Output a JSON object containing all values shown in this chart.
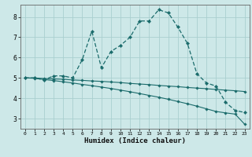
{
  "xlabel": "Humidex (Indice chaleur)",
  "background_color": "#cde8e8",
  "grid_color": "#aacfcf",
  "line_color": "#1a6b6b",
  "xlim": [
    -0.5,
    23.5
  ],
  "ylim": [
    2.5,
    8.6
  ],
  "xticks": [
    0,
    1,
    2,
    3,
    4,
    5,
    6,
    7,
    8,
    9,
    10,
    11,
    12,
    13,
    14,
    15,
    16,
    17,
    18,
    19,
    20,
    21,
    22,
    23
  ],
  "yticks": [
    3,
    4,
    5,
    6,
    7,
    8
  ],
  "series1_x": [
    0,
    1,
    2,
    3,
    4,
    5,
    6,
    7,
    8,
    9,
    10,
    11,
    12,
    13,
    14,
    15,
    16,
    17,
    18,
    19,
    20,
    21,
    22,
    23
  ],
  "series1_y": [
    5.0,
    5.0,
    4.9,
    5.1,
    5.1,
    5.0,
    5.9,
    7.3,
    5.5,
    6.3,
    6.6,
    7.0,
    7.8,
    7.8,
    8.35,
    8.2,
    7.5,
    6.7,
    5.2,
    4.75,
    4.6,
    3.8,
    3.4,
    3.3
  ],
  "series2_x": [
    0,
    1,
    2,
    3,
    4,
    5,
    6,
    7,
    8,
    9,
    10,
    11,
    12,
    13,
    14,
    15,
    16,
    17,
    18,
    19,
    20,
    21,
    22,
    23
  ],
  "series2_y": [
    5.0,
    5.0,
    4.97,
    4.95,
    4.93,
    4.9,
    4.88,
    4.85,
    4.83,
    4.8,
    4.77,
    4.73,
    4.7,
    4.67,
    4.63,
    4.6,
    4.57,
    4.53,
    4.5,
    4.47,
    4.43,
    4.4,
    4.37,
    4.33
  ],
  "series3_x": [
    0,
    1,
    2,
    3,
    4,
    5,
    6,
    7,
    8,
    9,
    10,
    11,
    12,
    13,
    14,
    15,
    16,
    17,
    18,
    19,
    20,
    21,
    22,
    23
  ],
  "series3_y": [
    5.0,
    4.98,
    4.92,
    4.87,
    4.81,
    4.75,
    4.68,
    4.62,
    4.55,
    4.48,
    4.4,
    4.32,
    4.23,
    4.14,
    4.05,
    3.95,
    3.84,
    3.73,
    3.61,
    3.48,
    3.35,
    3.28,
    3.22,
    2.72
  ]
}
